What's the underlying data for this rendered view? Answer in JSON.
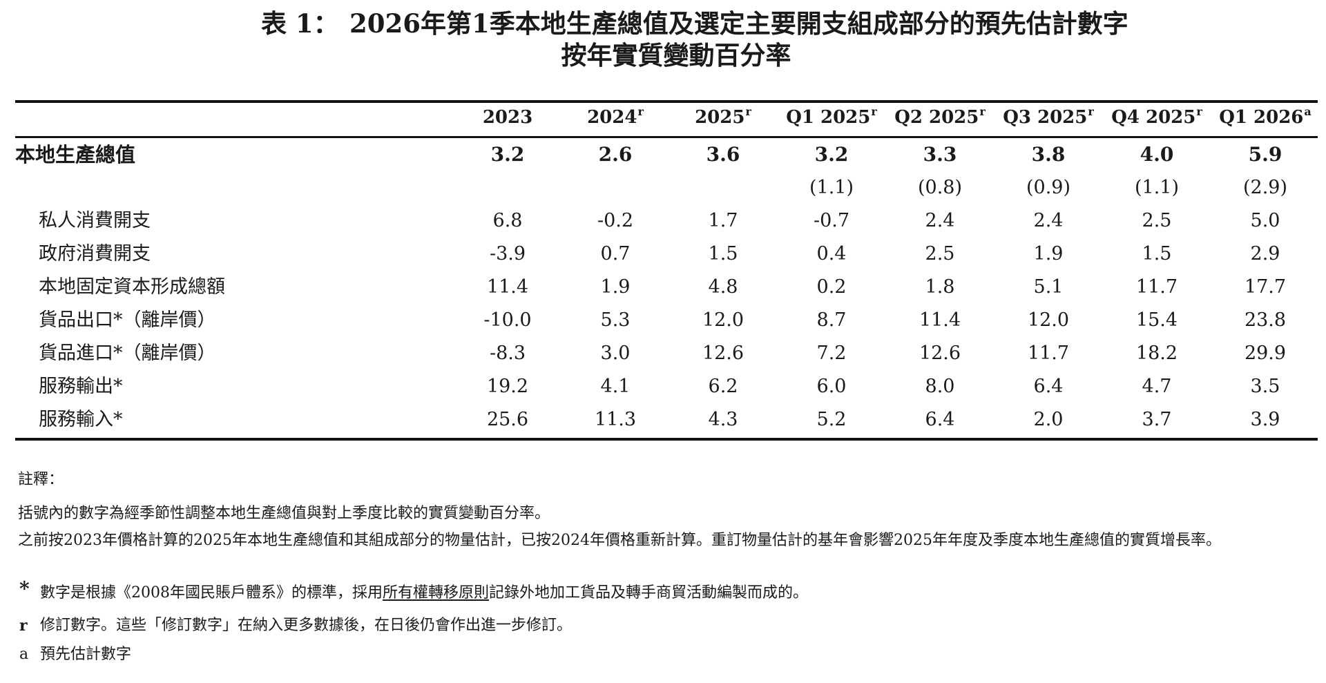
{
  "title": {
    "label": "表 1：",
    "line1": "2026年第1季本地生產總值及選定主要開支組成部分的預先估計數字",
    "line2": "按年實質變動百分率"
  },
  "table": {
    "columns": [
      {
        "label": "2023",
        "mark": ""
      },
      {
        "label": "2024",
        "mark": "r"
      },
      {
        "label": "2025",
        "mark": "r"
      },
      {
        "label": "Q1 2025",
        "mark": "r"
      },
      {
        "label": "Q2 2025",
        "mark": "r"
      },
      {
        "label": "Q3 2025",
        "mark": "r"
      },
      {
        "label": "Q4 2025",
        "mark": "r"
      },
      {
        "label": "Q1 2026",
        "mark": "a"
      }
    ],
    "gdp": {
      "label": "本地生產總值",
      "values": [
        "3.2",
        "2.6",
        "3.6",
        "3.2",
        "3.3",
        "3.8",
        "4.0",
        "5.9"
      ],
      "qoq": [
        "",
        "",
        "",
        "(1.1)",
        "(0.8)",
        "(0.9)",
        "(1.1)",
        "(2.9)"
      ]
    },
    "rows": [
      {
        "label": "私人消費開支",
        "values": [
          "6.8",
          "-0.2",
          "1.7",
          "-0.7",
          "2.4",
          "2.4",
          "2.5",
          "5.0"
        ]
      },
      {
        "label": "政府消費開支",
        "values": [
          "-3.9",
          "0.7",
          "1.5",
          "0.4",
          "2.5",
          "1.9",
          "1.5",
          "2.9"
        ]
      },
      {
        "label": "本地固定資本形成總額",
        "values": [
          "11.4",
          "1.9",
          "4.8",
          "0.2",
          "1.8",
          "5.1",
          "11.7",
          "17.7"
        ]
      },
      {
        "label": "貨品出口*（離岸價）",
        "values": [
          "-10.0",
          "5.3",
          "12.0",
          "8.7",
          "11.4",
          "12.0",
          "15.4",
          "23.8"
        ]
      },
      {
        "label": "貨品進口*（離岸價）",
        "values": [
          "-8.3",
          "3.0",
          "12.6",
          "7.2",
          "12.6",
          "11.7",
          "18.2",
          "29.9"
        ]
      },
      {
        "label": "服務輸出*",
        "values": [
          "19.2",
          "4.1",
          "6.2",
          "6.0",
          "8.0",
          "6.4",
          "4.7",
          "3.5"
        ]
      },
      {
        "label": "服務輸入*",
        "values": [
          "25.6",
          "11.3",
          "4.3",
          "5.2",
          "6.4",
          "2.0",
          "3.7",
          "3.9"
        ]
      }
    ]
  },
  "notes": {
    "heading": "註釋：",
    "note1": "括號內的數字為經季節性調整本地生產總值與對上季度比較的實質變動百分率。",
    "note2": "之前按2023年價格計算的2025年本地生產總值和其組成部分的物量估計，已按2024年價格重新計算。重訂物量估計的基年會影響2025年年度及季度本地生產總值的實質增長率。",
    "star_marker": "*",
    "star_pre": "數字是根據《2008年國民賬戶體系》的標準，採用",
    "star_link": "所有權轉移原則",
    "star_post": "記錄外地加工貨品及轉手商貿活動編製而成的。",
    "r_marker": "r",
    "r_text": "修訂數字。這些「修訂數字」在納入更多數據後，在日後仍會作出進一步修訂。",
    "a_marker": "a",
    "a_text": "預先估計數字"
  }
}
